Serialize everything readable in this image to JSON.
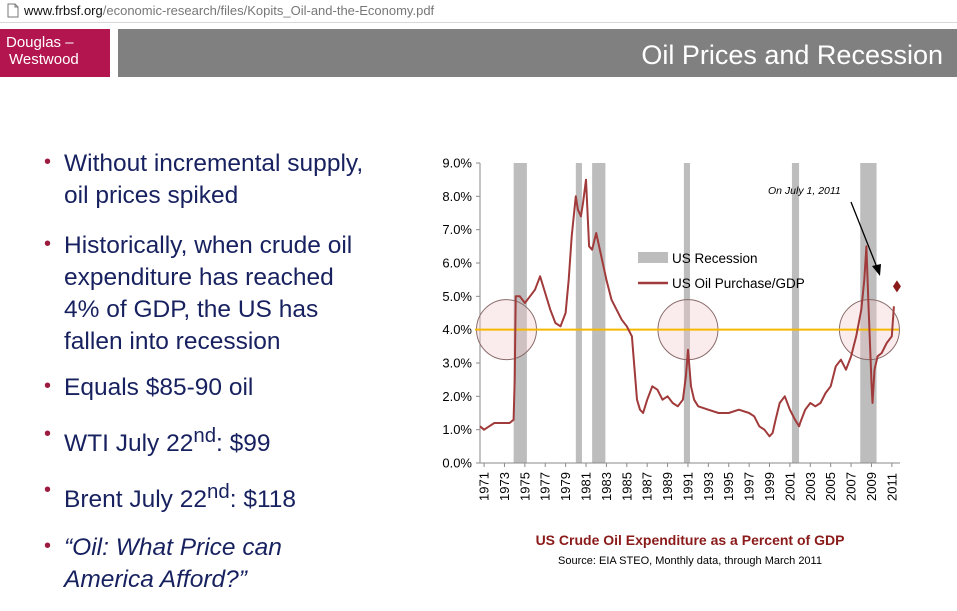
{
  "browser": {
    "url_host": "www.frbsf.org",
    "url_path": "/economic-research/files/Kopits_Oil-and-the-Economy.pdf"
  },
  "logo": {
    "line1": "Douglas –",
    "line2": "Westwood"
  },
  "slide_title": "Oil Prices and Recession",
  "bullets": [
    {
      "text": "Without incremental supply, oil prices spiked"
    },
    {
      "text": "Historically, when crude oil expenditure has reached 4% of GDP, the US has fallen into recession"
    },
    {
      "text": "Equals $85-90 oil"
    },
    {
      "pre": "WTI July 22",
      "sup": "nd",
      "post": ": $99"
    },
    {
      "pre": "Brent July 22",
      "sup": "nd",
      "post": ": $118"
    },
    {
      "text": "“Oil: What Price can America Afford?”"
    }
  ],
  "chart_data": {
    "type": "line",
    "title": "US Crude Oil Expenditure as a Percent of GDP",
    "source": "Source: EIA STEO, Monthly data, through March 2011",
    "ylim": [
      0,
      9
    ],
    "y_ticks": [
      "0.0%",
      "1.0%",
      "2.0%",
      "3.0%",
      "4.0%",
      "5.0%",
      "6.0%",
      "7.0%",
      "8.0%",
      "9.0%"
    ],
    "xlim": [
      1970.6,
      2011.8
    ],
    "x_ticks": [
      "1971",
      "1973",
      "1975",
      "1977",
      "1979",
      "1981",
      "1983",
      "1985",
      "1987",
      "1989",
      "1991",
      "1993",
      "1995",
      "1997",
      "1999",
      "2001",
      "2003",
      "2005",
      "2007",
      "2009",
      "2011"
    ],
    "threshold": 4.0,
    "legend": [
      "US Recession",
      "US Oil Purchase/GDP"
    ],
    "annotation": "On July 1, 2011",
    "recessions": [
      [
        1973.9,
        1975.2
      ],
      [
        1980.0,
        1980.6
      ],
      [
        1981.6,
        1982.9
      ],
      [
        1990.6,
        1991.2
      ],
      [
        2001.2,
        2001.9
      ],
      [
        2007.9,
        2009.5
      ]
    ],
    "circles": [
      [
        1973.2,
        4.0
      ],
      [
        1991.0,
        4.0
      ],
      [
        2008.8,
        4.0
      ]
    ],
    "series": [
      {
        "name": "US Oil Purchase/GDP",
        "x": [
          1970.6,
          1971,
          1971.5,
          1972,
          1972.5,
          1973,
          1973.5,
          1973.9,
          1974.0,
          1974.1,
          1974.5,
          1975,
          1975.5,
          1976,
          1976.5,
          1977,
          1977.5,
          1978,
          1978.5,
          1979,
          1979.3,
          1979.6,
          1980,
          1980.2,
          1980.5,
          1980.7,
          1981,
          1981.3,
          1981.6,
          1982,
          1982.5,
          1983,
          1983.5,
          1984,
          1984.5,
          1985,
          1985.5,
          1986,
          1986.3,
          1986.6,
          1987,
          1987.5,
          1988,
          1988.5,
          1989,
          1989.5,
          1990,
          1990.5,
          1990.8,
          1991.0,
          1991.3,
          1991.6,
          1992,
          1993,
          1994,
          1995,
          1996,
          1997,
          1997.5,
          1998,
          1998.5,
          1999,
          1999.3,
          1999.6,
          2000,
          2000.5,
          2001,
          2001.5,
          2001.9,
          2002,
          2002.5,
          2003,
          2003.5,
          2004,
          2004.5,
          2005,
          2005.5,
          2006,
          2006.5,
          2007,
          2007.5,
          2008,
          2008.3,
          2008.5,
          2008.7,
          2009,
          2009.1,
          2009.3,
          2009.6,
          2010,
          2010.5,
          2011,
          2011.2
        ],
        "values": [
          1.1,
          1.0,
          1.1,
          1.2,
          1.2,
          1.2,
          1.2,
          1.3,
          2.5,
          5.0,
          5.0,
          4.8,
          5.0,
          5.2,
          5.6,
          5.1,
          4.6,
          4.2,
          4.1,
          4.5,
          5.5,
          6.8,
          8.0,
          7.6,
          7.4,
          7.8,
          8.5,
          6.5,
          6.4,
          6.9,
          6.2,
          5.5,
          4.9,
          4.6,
          4.3,
          4.1,
          3.8,
          1.9,
          1.6,
          1.5,
          1.9,
          2.3,
          2.2,
          1.9,
          2.0,
          1.8,
          1.7,
          1.9,
          2.6,
          3.4,
          2.3,
          1.9,
          1.7,
          1.6,
          1.5,
          1.5,
          1.6,
          1.5,
          1.4,
          1.1,
          1.0,
          0.8,
          0.9,
          1.3,
          1.8,
          2.0,
          1.6,
          1.3,
          1.1,
          1.2,
          1.6,
          1.8,
          1.7,
          1.8,
          2.1,
          2.3,
          2.9,
          3.1,
          2.8,
          3.2,
          3.8,
          4.6,
          5.5,
          6.5,
          4.8,
          2.4,
          1.8,
          2.8,
          3.2,
          3.3,
          3.6,
          3.8,
          4.7
        ]
      }
    ],
    "marker_point": {
      "x": 2011.5,
      "y": 5.3
    }
  }
}
